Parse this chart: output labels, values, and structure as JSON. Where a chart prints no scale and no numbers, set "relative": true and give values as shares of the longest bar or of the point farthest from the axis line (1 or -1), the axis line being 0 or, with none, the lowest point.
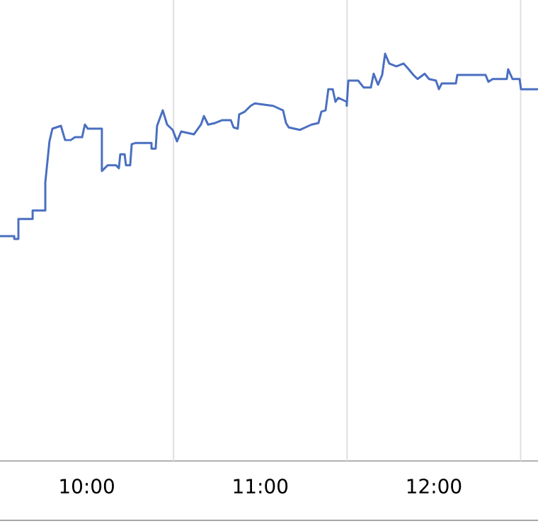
{
  "chart_data": {
    "type": "line",
    "relative": true,
    "color": "#4a6fc1",
    "grid": true,
    "xlim": [
      9.5,
      12.6
    ],
    "xticks": [
      {
        "value": 10,
        "label": "10:00"
      },
      {
        "value": 10.5,
        "label": null
      },
      {
        "value": 11,
        "label": "11:00"
      },
      {
        "value": 11.5,
        "label": null
      },
      {
        "value": 12,
        "label": "12:00"
      },
      {
        "value": 12.5,
        "label": null
      }
    ],
    "x": [
      9.5,
      9.582,
      9.582,
      9.606,
      9.606,
      9.688,
      9.688,
      9.761,
      9.761,
      9.785,
      9.802,
      9.851,
      9.875,
      9.908,
      9.932,
      9.973,
      9.989,
      10.006,
      10.087,
      10.087,
      10.12,
      10.169,
      10.185,
      10.193,
      10.218,
      10.226,
      10.25,
      10.259,
      10.283,
      10.373,
      10.373,
      10.397,
      10.405,
      10.438,
      10.463,
      10.495,
      10.52,
      10.544,
      10.617,
      10.658,
      10.675,
      10.699,
      10.74,
      10.781,
      10.83,
      10.846,
      10.87,
      10.878,
      10.911,
      10.944,
      10.968,
      11.074,
      11.131,
      11.148,
      11.164,
      11.229,
      11.295,
      11.335,
      11.352,
      11.376,
      11.392,
      11.417,
      11.433,
      11.449,
      11.498,
      11.498,
      11.507,
      11.564,
      11.596,
      11.637,
      11.653,
      11.678,
      11.702,
      11.719,
      11.743,
      11.784,
      11.825,
      11.849,
      11.882,
      11.906,
      11.947,
      11.972,
      12.012,
      12.029,
      12.045,
      12.127,
      12.135,
      12.298,
      12.314,
      12.339,
      12.42,
      12.428,
      12.453,
      12.494,
      12.502,
      12.6
    ],
    "values": [
      0.552,
      0.552,
      0.545,
      0.545,
      0.594,
      0.594,
      0.615,
      0.615,
      0.684,
      0.785,
      0.816,
      0.823,
      0.788,
      0.788,
      0.795,
      0.795,
      0.826,
      0.816,
      0.816,
      0.712,
      0.726,
      0.726,
      0.719,
      0.753,
      0.753,
      0.726,
      0.726,
      0.778,
      0.781,
      0.781,
      0.767,
      0.767,
      0.823,
      0.861,
      0.826,
      0.813,
      0.785,
      0.809,
      0.802,
      0.826,
      0.847,
      0.826,
      0.83,
      0.837,
      0.837,
      0.819,
      0.816,
      0.851,
      0.858,
      0.872,
      0.878,
      0.872,
      0.861,
      0.83,
      0.819,
      0.813,
      0.826,
      0.83,
      0.858,
      0.861,
      0.913,
      0.913,
      0.882,
      0.892,
      0.882,
      0.872,
      0.934,
      0.934,
      0.917,
      0.917,
      0.951,
      0.924,
      0.948,
      1,
      0.976,
      0.969,
      0.976,
      0.965,
      0.948,
      0.938,
      0.951,
      0.938,
      0.934,
      0.913,
      0.927,
      0.927,
      0.948,
      0.948,
      0.931,
      0.938,
      0.938,
      0.962,
      0.938,
      0.938,
      0.913,
      0.913
    ]
  }
}
